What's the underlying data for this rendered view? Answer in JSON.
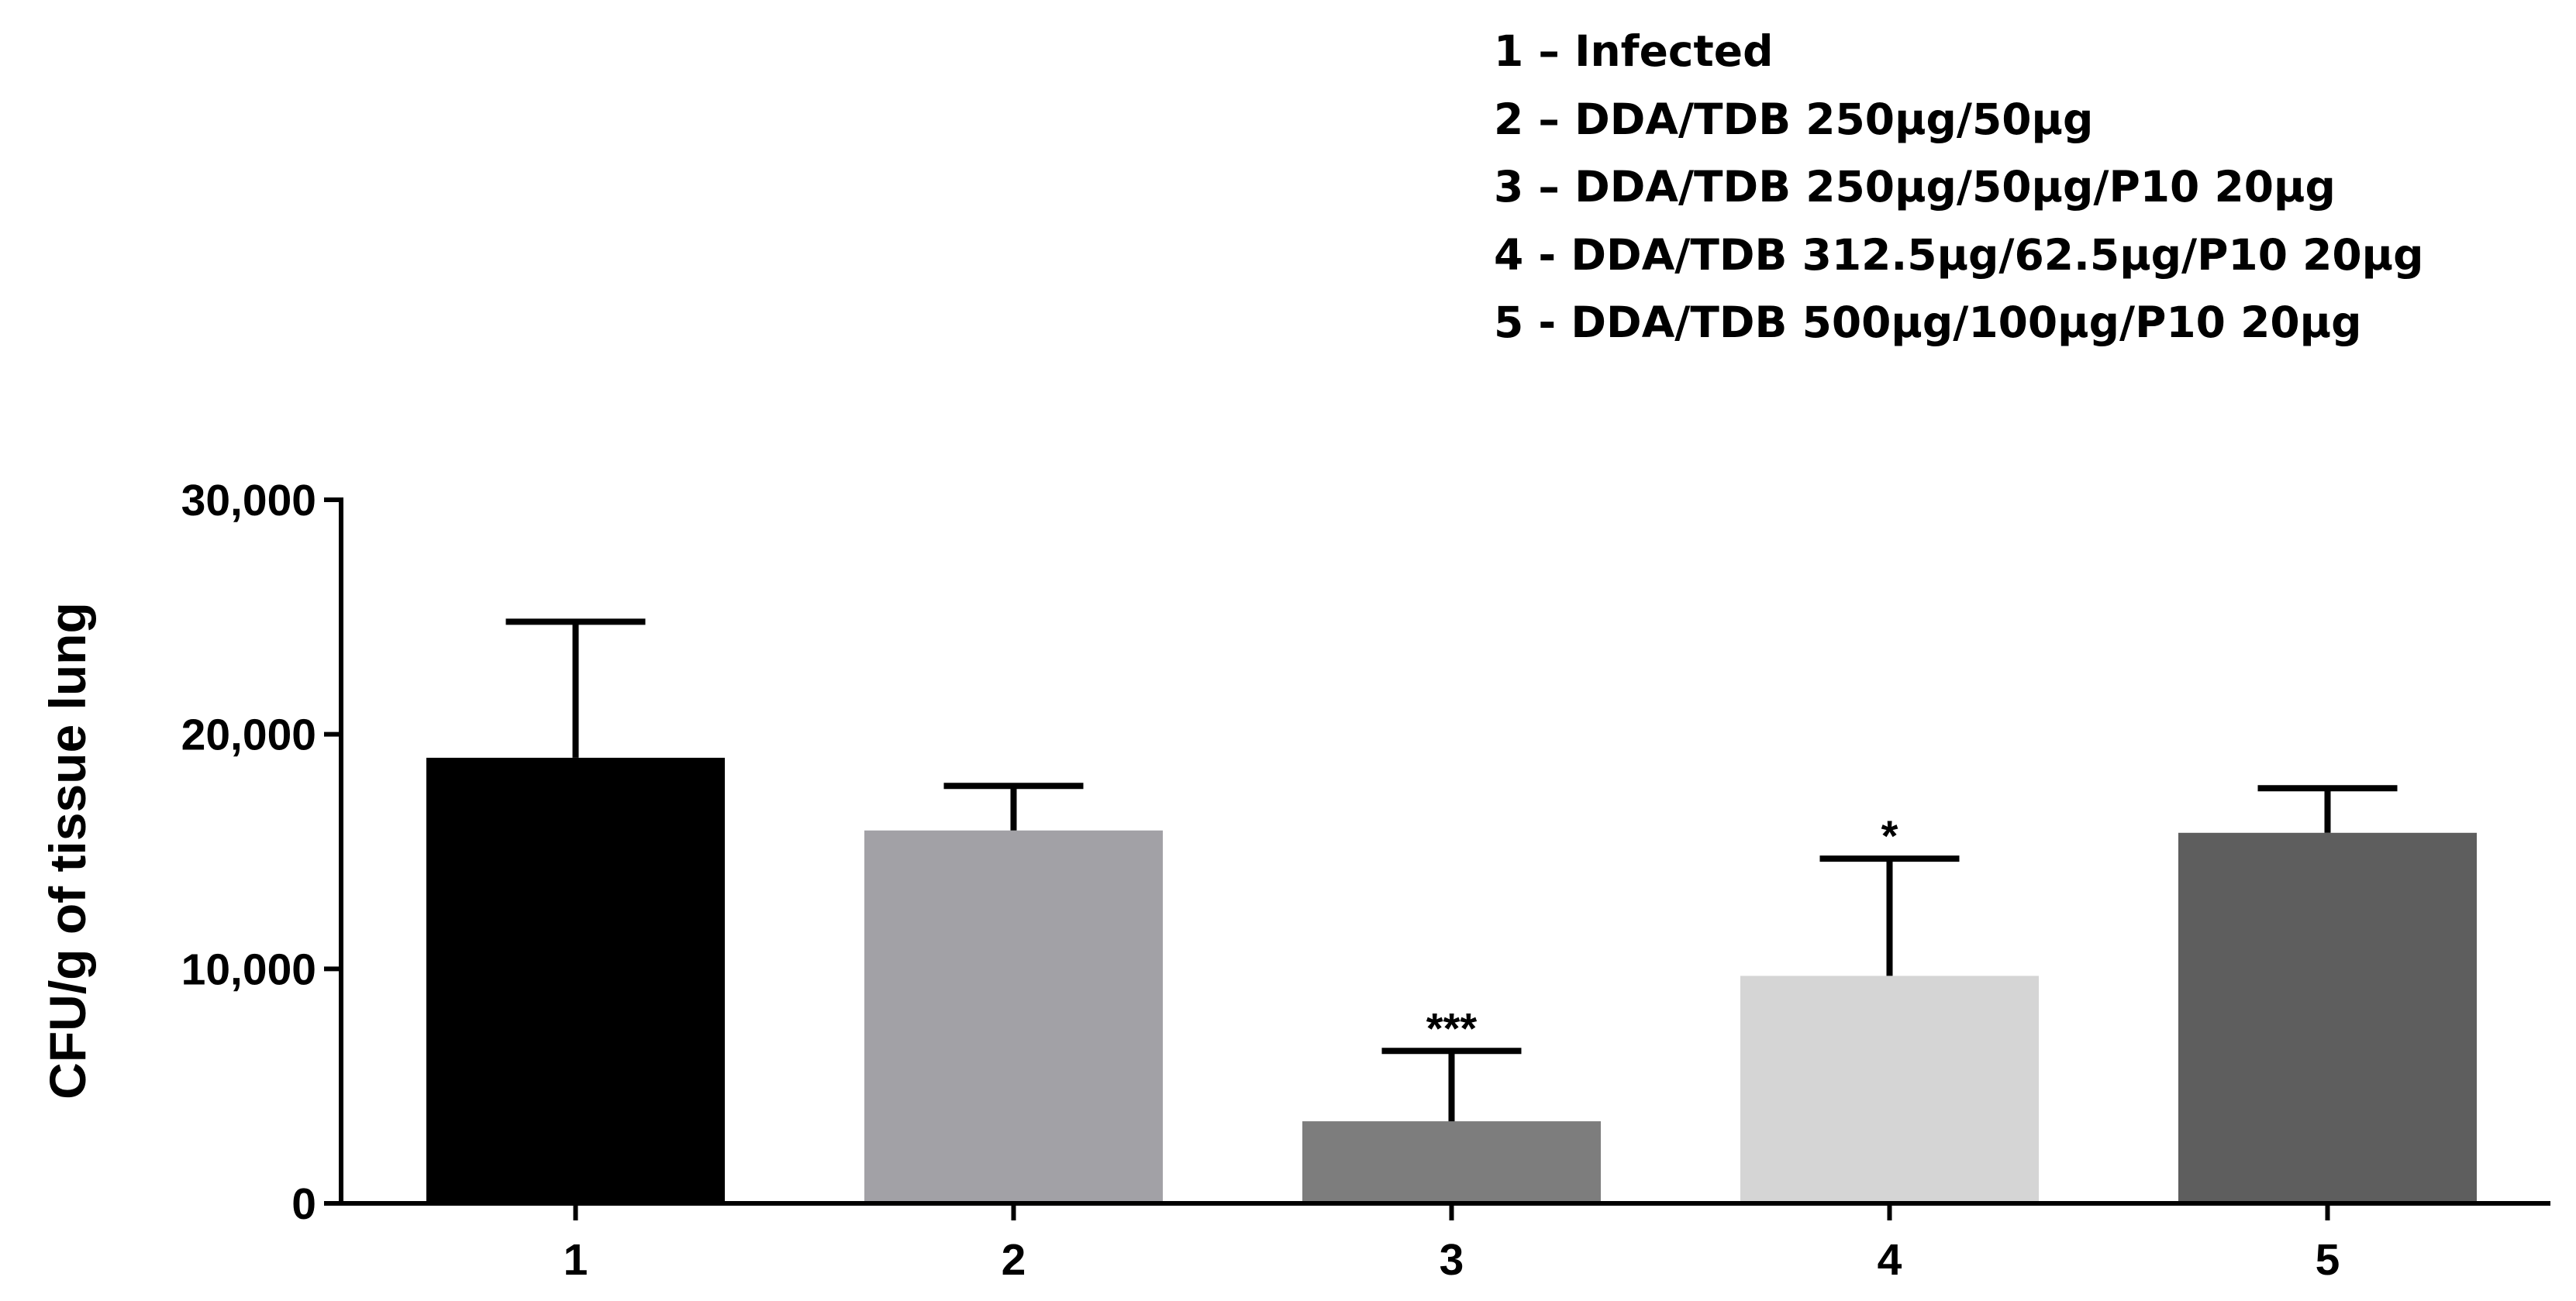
{
  "legend_items": [
    "1 – Infected",
    "2 – DDA/TDB 250µg/50µg",
    "3 – DDA/TDB 250µg/50µg/P10 20µg",
    "4 - DDA/TDB 312.5µg/62.5µg/P10 20µg",
    "5 - DDA/TDB 500µg/100µg/P10 20µg"
  ],
  "chart_data": {
    "type": "bar",
    "title": "",
    "xlabel": "",
    "ylabel": "CFU/g of tissue lung",
    "categories": [
      "1",
      "2",
      "3",
      "4",
      "5"
    ],
    "values": [
      19000,
      15900,
      3500,
      9700,
      15800
    ],
    "error_upper": [
      24800,
      17800,
      6500,
      14700,
      17700
    ],
    "annotations": [
      "",
      "",
      "***",
      "*",
      ""
    ],
    "colors": [
      "#000000",
      "#a2a1a6",
      "#7d7d7d",
      "#d5d5d5",
      "#5e5e5e"
    ],
    "ylim": [
      0,
      30000
    ],
    "yticks": [
      0,
      10000,
      20000,
      30000
    ],
    "ytick_labels": [
      "0",
      "10,000",
      "20,000",
      "30,000"
    ],
    "grid": false,
    "legend_position": "top-right"
  }
}
